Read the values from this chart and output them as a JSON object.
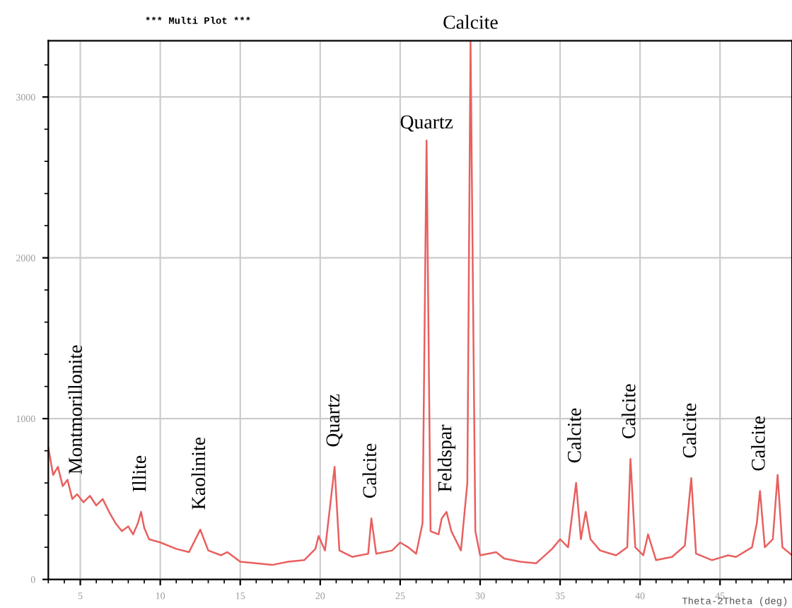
{
  "chart_data": {
    "type": "line",
    "title": "*** Multi Plot ***",
    "xlabel": "Theta-2Theta (deg)",
    "x": [
      3.0,
      3.3,
      3.6,
      3.9,
      4.2,
      4.5,
      4.8,
      5.2,
      5.6,
      6.0,
      6.4,
      6.8,
      7.2,
      7.6,
      8.0,
      8.3,
      8.6,
      8.8,
      9.0,
      9.3,
      10.0,
      11.0,
      11.8,
      12.5,
      13.0,
      13.8,
      14.2,
      15.0,
      16.0,
      17.0,
      18.0,
      19.0,
      19.7,
      19.9,
      20.3,
      20.9,
      21.2,
      22.0,
      23.0,
      23.2,
      23.5,
      24.5,
      25.0,
      25.5,
      26.0,
      26.4,
      26.65,
      26.9,
      27.4,
      27.6,
      27.9,
      28.2,
      28.8,
      29.2,
      29.4,
      29.7,
      30.0,
      31.0,
      31.5,
      32.5,
      33.5,
      34.5,
      35.0,
      35.5,
      36.0,
      36.3,
      36.6,
      36.9,
      37.5,
      38.5,
      39.2,
      39.4,
      39.7,
      40.2,
      40.5,
      41.0,
      42.0,
      42.8,
      43.2,
      43.5,
      44.5,
      45.5,
      46.0,
      47.0,
      47.3,
      47.5,
      47.8,
      48.3,
      48.6,
      48.9,
      49.5
    ],
    "series": [
      {
        "color": "#e8605f",
        "values": [
          820,
          650,
          700,
          580,
          620,
          500,
          530,
          480,
          520,
          460,
          500,
          420,
          350,
          300,
          330,
          280,
          350,
          420,
          320,
          250,
          230,
          190,
          170,
          310,
          180,
          150,
          170,
          110,
          100,
          90,
          110,
          120,
          190,
          270,
          180,
          700,
          180,
          140,
          160,
          380,
          160,
          180,
          230,
          200,
          160,
          350,
          2730,
          300,
          280,
          380,
          420,
          300,
          180,
          600,
          3350,
          300,
          150,
          170,
          130,
          110,
          100,
          190,
          250,
          200,
          600,
          250,
          420,
          250,
          180,
          150,
          200,
          750,
          200,
          150,
          280,
          120,
          140,
          210,
          630,
          160,
          120,
          150,
          140,
          200,
          350,
          550,
          200,
          250,
          650,
          200,
          150
        ]
      }
    ],
    "xlim": [
      3,
      49.5
    ],
    "ylim": [
      0,
      3350
    ],
    "xticks": [
      5,
      10,
      15,
      20,
      25,
      30,
      35,
      40,
      45
    ],
    "yticks": [
      0,
      1000,
      2000,
      3000
    ],
    "grid": true,
    "legend": false,
    "marker": "none",
    "line_style": "solid",
    "annotations": [
      {
        "text": "Montmorillonite",
        "x": 4.8,
        "y": 530
      },
      {
        "text": "Illite",
        "x": 8.8,
        "y": 420
      },
      {
        "text": "Kaolinite",
        "x": 12.5,
        "y": 310
      },
      {
        "text": "Quartz",
        "x": 20.9,
        "y": 700
      },
      {
        "text": "Calcite",
        "x": 23.2,
        "y": 380
      },
      {
        "text": "Quartz",
        "x": 26.65,
        "y": 2730
      },
      {
        "text": "Feldspar",
        "x": 27.9,
        "y": 420
      },
      {
        "text": "Calcite",
        "x": 29.4,
        "y": 3350
      },
      {
        "text": "Calcite",
        "x": 36.0,
        "y": 600
      },
      {
        "text": "Calcite",
        "x": 39.4,
        "y": 750
      },
      {
        "text": "Calcite",
        "x": 43.2,
        "y": 630
      },
      {
        "text": "Calcite",
        "x": 47.5,
        "y": 550
      }
    ]
  }
}
